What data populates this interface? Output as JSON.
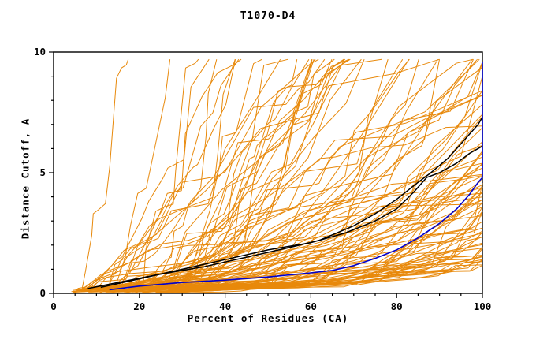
{
  "chart_data": {
    "type": "line",
    "title": "T1070-D4",
    "xlabel": "Percent of Residues (CA)",
    "ylabel": "Distance Cutoff, A",
    "xlim": [
      0,
      100
    ],
    "ylim": [
      0,
      10
    ],
    "x_ticks": [
      0,
      20,
      40,
      60,
      80,
      100
    ],
    "x_minor_step": 5,
    "y_ticks": [
      0,
      5,
      10
    ],
    "y_minor_step": 1,
    "grid": false,
    "legend": "none",
    "frame_color": "#000000",
    "series": [
      {
        "name": "best-model-blue",
        "color": "#0000cd",
        "stroke_width": 1.6,
        "points": [
          [
            13,
            0.15
          ],
          [
            20,
            0.3
          ],
          [
            30,
            0.45
          ],
          [
            40,
            0.55
          ],
          [
            50,
            0.68
          ],
          [
            60,
            0.85
          ],
          [
            65,
            0.95
          ],
          [
            70,
            1.15
          ],
          [
            75,
            1.45
          ],
          [
            80,
            1.8
          ],
          [
            85,
            2.3
          ],
          [
            90,
            2.9
          ],
          [
            94,
            3.5
          ],
          [
            97,
            4.1
          ],
          [
            99,
            4.6
          ],
          [
            100,
            4.8
          ],
          [
            100,
            9.6
          ]
        ]
      },
      {
        "name": "reference-model-black-1",
        "color": "#000000",
        "stroke_width": 1.5,
        "points": [
          [
            8,
            0.2
          ],
          [
            15,
            0.45
          ],
          [
            25,
            0.8
          ],
          [
            35,
            1.1
          ],
          [
            45,
            1.5
          ],
          [
            55,
            1.9
          ],
          [
            62,
            2.2
          ],
          [
            70,
            2.8
          ],
          [
            75,
            3.3
          ],
          [
            80,
            3.9
          ],
          [
            85,
            4.6
          ],
          [
            88,
            5.0
          ],
          [
            92,
            5.6
          ],
          [
            96,
            6.4
          ],
          [
            99,
            7.0
          ],
          [
            100,
            7.3
          ]
        ]
      },
      {
        "name": "reference-model-black-2",
        "color": "#000000",
        "stroke_width": 1.5,
        "points": [
          [
            11,
            0.25
          ],
          [
            20,
            0.6
          ],
          [
            30,
            1.0
          ],
          [
            40,
            1.4
          ],
          [
            50,
            1.8
          ],
          [
            60,
            2.1
          ],
          [
            68,
            2.5
          ],
          [
            75,
            3.0
          ],
          [
            80,
            3.5
          ],
          [
            84,
            4.2
          ],
          [
            87,
            4.8
          ],
          [
            90,
            5.0
          ],
          [
            94,
            5.4
          ],
          [
            97,
            5.8
          ],
          [
            100,
            6.1
          ]
        ]
      }
    ],
    "ensemble": {
      "name": "model-pool",
      "color": "#e8890b",
      "stroke_width": 1,
      "count": 112,
      "seed": 1337,
      "y_cap": 9.7,
      "description": "orange GDT-style cumulative distance-cutoff curves for the pool of predicted models"
    }
  }
}
